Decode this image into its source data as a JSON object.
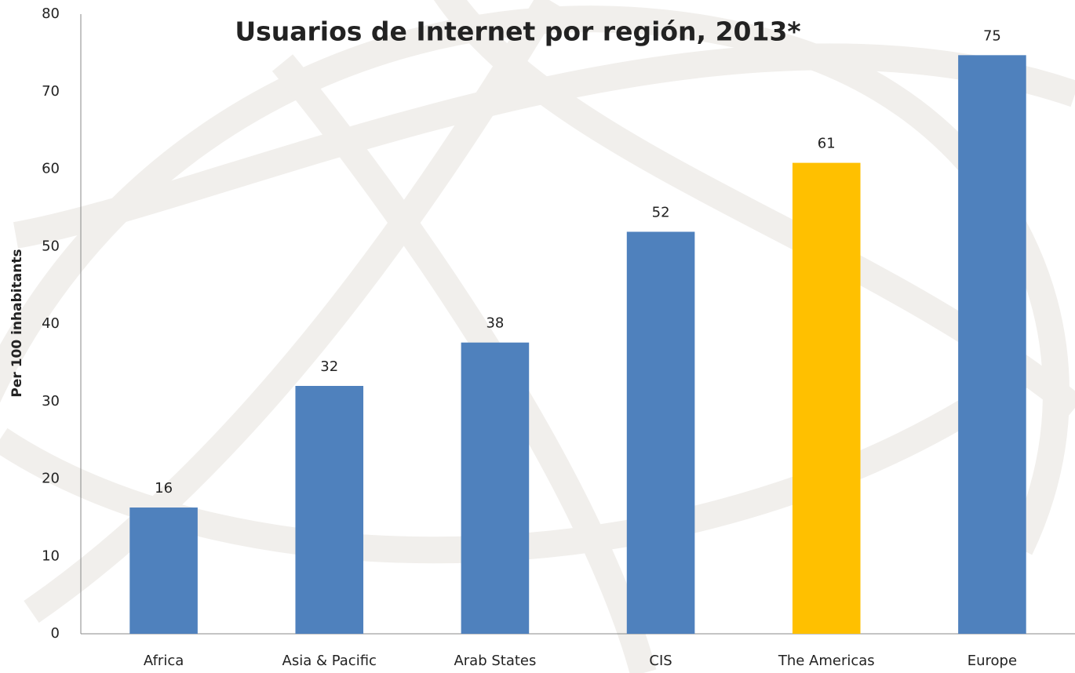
{
  "chart_data": {
    "type": "bar",
    "title": "Usuarios de Internet por región, 2013*",
    "ylabel": "Per 100 inhabitants",
    "categories": [
      "Africa",
      "Asia & Pacific",
      "Arab States",
      "CIS",
      "The Americas",
      "Europe"
    ],
    "values": [
      16.3,
      32,
      37.6,
      51.9,
      60.8,
      74.7
    ],
    "value_labels": [
      "16",
      "32",
      "38",
      "52",
      "61",
      "75"
    ],
    "colors": [
      "#4f81bd",
      "#4f81bd",
      "#4f81bd",
      "#4f81bd",
      "#ffc000",
      "#4f81bd"
    ],
    "ylim": [
      0,
      80
    ],
    "yticks": [
      0,
      10,
      20,
      30,
      40,
      50,
      60,
      70,
      80
    ],
    "grid": false
  }
}
